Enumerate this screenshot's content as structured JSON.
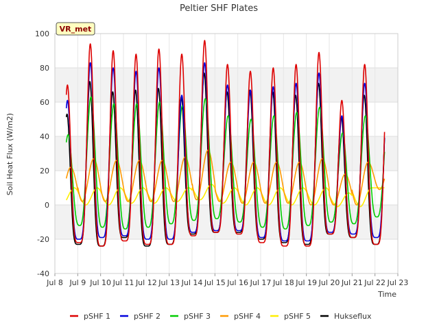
{
  "chart_data": {
    "type": "line",
    "title": "Peltier SHF Plates",
    "xlabel": "Time",
    "ylabel": "Soil Heat Flux (W/m2)",
    "badge": "VR_met",
    "xlim": [
      8,
      23
    ],
    "ylim": [
      -40,
      100
    ],
    "x_ticks": [
      {
        "v": 8,
        "label": "Jul 8"
      },
      {
        "v": 9,
        "label": "Jul 9"
      },
      {
        "v": 10,
        "label": "Jul 10"
      },
      {
        "v": 11,
        "label": "Jul 11"
      },
      {
        "v": 12,
        "label": "Jul 12"
      },
      {
        "v": 13,
        "label": "Jul 13"
      },
      {
        "v": 14,
        "label": "Jul 14"
      },
      {
        "v": 15,
        "label": "Jul 15"
      },
      {
        "v": 16,
        "label": "Jul 16"
      },
      {
        "v": 17,
        "label": "Jul 17"
      },
      {
        "v": 18,
        "label": "Jul 18"
      },
      {
        "v": 19,
        "label": "Jul 19"
      },
      {
        "v": 20,
        "label": "Jul 20"
      },
      {
        "v": 21,
        "label": "Jul 21"
      },
      {
        "v": 22,
        "label": "Jul 22"
      },
      {
        "v": 23,
        "label": "Jul 23"
      }
    ],
    "y_ticks": [
      -40,
      -20,
      0,
      20,
      40,
      60,
      80,
      100
    ],
    "grid": true,
    "legend_position": "bottom",
    "data_start": 8.5,
    "data_end": 22.42,
    "series": [
      {
        "name": "pSHF 1",
        "color": "#dd0000",
        "peak_phase": 0.55,
        "peak_sharpness": 2.6,
        "peaks": [
          70,
          94,
          90,
          88,
          91,
          88,
          96,
          82,
          78,
          80,
          82,
          89,
          61,
          82
        ],
        "troughs": [
          -22,
          -22,
          -24,
          -21,
          -23,
          -23,
          -18,
          -16,
          -17,
          -22,
          -24,
          -24,
          -17,
          -19,
          -23
        ]
      },
      {
        "name": "pSHF 2",
        "color": "#0000dd",
        "peak_phase": 0.55,
        "peak_sharpness": 2.4,
        "peaks": [
          61,
          83,
          80,
          78,
          80,
          64,
          83,
          70,
          67,
          69,
          71,
          77,
          52,
          71
        ],
        "troughs": [
          -19,
          -20,
          -19,
          -18,
          -20,
          -20,
          -16,
          -15,
          -15,
          -19,
          -21,
          -21,
          -16,
          -17,
          -19
        ]
      },
      {
        "name": "pSHF 3",
        "color": "#00cc00",
        "peak_phase": 0.58,
        "peak_sharpness": 1.6,
        "peaks": [
          41,
          63,
          59,
          59,
          60,
          58,
          62,
          52,
          50,
          52,
          54,
          57,
          42,
          52
        ],
        "troughs": [
          -5,
          -12,
          -13,
          -14,
          -13,
          -11,
          -9,
          -8,
          -10,
          -13,
          -14,
          -12,
          -10,
          -11,
          -7
        ]
      },
      {
        "name": "pSHF 4",
        "color": "#ff9900",
        "peak_phase": 0.7,
        "peak_sharpness": 1.0,
        "peaks": [
          22,
          27,
          26,
          26,
          26,
          28,
          32,
          25,
          25,
          25,
          25,
          27,
          18,
          25
        ],
        "troughs": [
          3,
          2,
          2,
          2,
          2,
          2,
          3,
          2,
          1,
          1,
          1,
          0,
          0,
          0,
          9
        ]
      },
      {
        "name": "pSHF 5",
        "color": "#ffee00",
        "peak_phase": 0.85,
        "peak_sharpness": 1.0,
        "peaks": [
          10,
          10,
          10,
          10,
          10,
          10,
          12,
          10,
          10,
          10,
          10,
          10,
          7,
          10
        ],
        "troughs": [
          1,
          0,
          0,
          1,
          1,
          2,
          3,
          1,
          0,
          0,
          0,
          0,
          -1,
          -1,
          10
        ]
      },
      {
        "name": "Hukseflux",
        "color": "#000000",
        "peak_phase": 0.53,
        "peak_sharpness": 2.6,
        "peaks": [
          53,
          72,
          66,
          67,
          68,
          63,
          77,
          66,
          67,
          66,
          64,
          71,
          51,
          64
        ],
        "troughs": [
          -22,
          -23,
          -24,
          -19,
          -24,
          -23,
          -17,
          -16,
          -16,
          -20,
          -22,
          -23,
          -17,
          -19,
          -23
        ]
      }
    ]
  }
}
